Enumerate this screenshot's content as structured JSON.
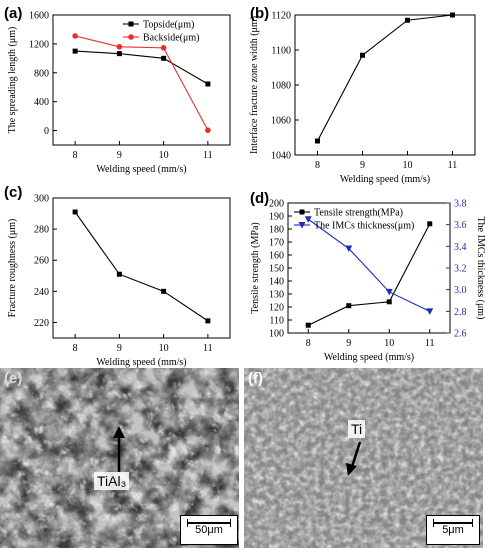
{
  "chart_data": [
    {
      "panel": "(a)",
      "type": "line",
      "x": [
        8,
        9,
        10,
        11
      ],
      "xlabel": "Welding speed (mm/s)",
      "ylabel": "The spreading length (μm)",
      "ylim": [
        -200,
        1600
      ],
      "yticks": [
        0,
        400,
        800,
        1200,
        1600
      ],
      "legend": "top-right",
      "series": [
        {
          "name": "Topside(μm)",
          "values": [
            1100,
            1065,
            1000,
            645
          ],
          "color": "#000000",
          "marker": "square"
        },
        {
          "name": "Backside(μm)",
          "values": [
            1310,
            1160,
            1145,
            5
          ],
          "color": "#e8302a",
          "marker": "circle"
        }
      ]
    },
    {
      "panel": "(b)",
      "type": "line",
      "x": [
        8,
        9,
        10,
        11
      ],
      "xlabel": "Welding speed (mm/s)",
      "ylabel": "Interface fracture zone width (μm)",
      "ylim": [
        1040,
        1120
      ],
      "yticks": [
        1040,
        1060,
        1080,
        1100,
        1120
      ],
      "series": [
        {
          "name": "",
          "values": [
            1048,
            1097,
            1117,
            1120
          ],
          "color": "#000000",
          "marker": "square"
        }
      ]
    },
    {
      "panel": "(c)",
      "type": "line",
      "x": [
        8,
        9,
        10,
        11
      ],
      "xlabel": "Welding speed (mm/s)",
      "ylabel": "Fracture roughness (μm)",
      "ylim": [
        210,
        300
      ],
      "yticks": [
        220,
        240,
        260,
        280,
        300
      ],
      "series": [
        {
          "name": "",
          "values": [
            291,
            251,
            240,
            221
          ],
          "color": "#000000",
          "marker": "square"
        }
      ]
    },
    {
      "panel": "(d)",
      "type": "line",
      "x": [
        8,
        9,
        10,
        11
      ],
      "xlabel": "Welding speed (mm/s)",
      "ylabel": "Tensile strength (MPa)",
      "ylim": [
        100,
        200
      ],
      "yticks": [
        100,
        110,
        120,
        130,
        140,
        150,
        160,
        170,
        180,
        190,
        200
      ],
      "ylabel_right": "The IMCs thickness (μm)",
      "ylim_right": [
        2.6,
        3.8
      ],
      "yticks_right": [
        2.6,
        2.8,
        3.0,
        3.2,
        3.4,
        3.6,
        3.8
      ],
      "legend": "top-left",
      "series": [
        {
          "name": "Tensile strength(MPa)",
          "values": [
            106,
            121,
            124,
            184
          ],
          "color": "#000000",
          "marker": "square",
          "axis": "left"
        },
        {
          "name": "The IMCs thickness(μm)",
          "values": [
            3.65,
            3.38,
            2.98,
            2.8
          ],
          "color": "#1f2bbf",
          "marker": "triangle-down",
          "axis": "right"
        }
      ]
    }
  ],
  "images": {
    "e": {
      "panel": "(e)",
      "annotation": "TiAl₃",
      "scale": "50μm"
    },
    "f": {
      "panel": "(f)",
      "annotation": "Ti",
      "scale": "5μm"
    }
  }
}
